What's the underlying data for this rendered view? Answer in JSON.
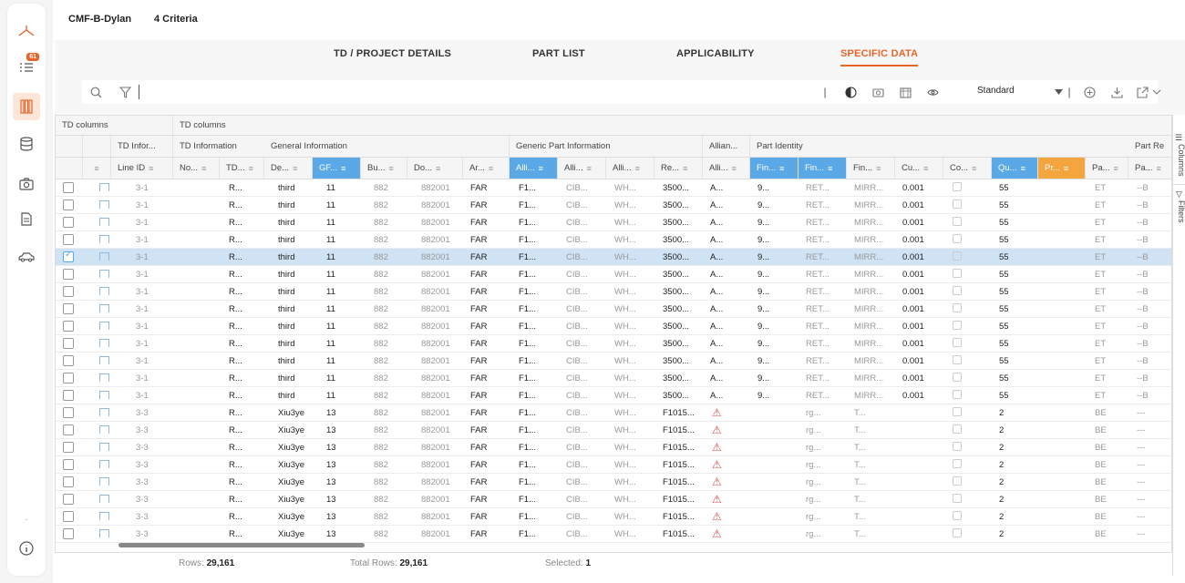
{
  "header": {
    "project": "CMF-B-Dylan",
    "criteria": "4 Criteria"
  },
  "nav": {
    "badge": "61"
  },
  "tabs": [
    {
      "label": "TD / PROJECT DETAILS"
    },
    {
      "label": "PART LIST"
    },
    {
      "label": "APPLICABILITY"
    },
    {
      "label": "SPECIFIC DATA"
    }
  ],
  "toolbar": {
    "view": "Standard",
    "search_placeholder": ""
  },
  "grid": {
    "group_row1": [
      "TD columns",
      "TD columns"
    ],
    "group_row2": [
      "TD Infor...",
      "TD Information",
      "General Information",
      "Generic Part Information",
      "Allian...",
      "Part Identity",
      "Part Re"
    ],
    "columns": [
      "Line ID",
      "No...",
      "TD...",
      "De...",
      "GF...",
      "Bu...",
      "Do...",
      "Ar...",
      "Alli...",
      "Alli...",
      "Alli...",
      "Re...",
      "Alli...",
      "Fin...",
      "Fin...",
      "Fin...",
      "Cu...",
      "Co...",
      "Qu...",
      "Pr...",
      "Pa...",
      "Pa..."
    ],
    "rows": [
      {
        "line": "3-1",
        "td": "R...",
        "de": "third",
        "gf": "11",
        "bu": "882",
        "do": "882001",
        "ar": "FAR",
        "a1": "F1...",
        "a2": "CIB...",
        "a3": "WH...",
        "re": "3500...",
        "a4": "A...",
        "f1": "9...",
        "f2": "RET...",
        "f3": "MIRR...",
        "cu": "0.001",
        "qu": "55",
        "pa1": "ET",
        "pa2": "--B",
        "warn": false,
        "sel": false
      },
      {
        "line": "3-1",
        "td": "R...",
        "de": "third",
        "gf": "11",
        "bu": "882",
        "do": "882001",
        "ar": "FAR",
        "a1": "F1...",
        "a2": "CIB...",
        "a3": "WH...",
        "re": "3500...",
        "a4": "A...",
        "f1": "9...",
        "f2": "RET...",
        "f3": "MIRR...",
        "cu": "0.001",
        "qu": "55",
        "pa1": "ET",
        "pa2": "--B",
        "warn": false,
        "sel": false
      },
      {
        "line": "3-1",
        "td": "R...",
        "de": "third",
        "gf": "11",
        "bu": "882",
        "do": "882001",
        "ar": "FAR",
        "a1": "F1...",
        "a2": "CIB...",
        "a3": "WH...",
        "re": "3500...",
        "a4": "A...",
        "f1": "9...",
        "f2": "RET...",
        "f3": "MIRR...",
        "cu": "0.001",
        "qu": "55",
        "pa1": "ET",
        "pa2": "--B",
        "warn": false,
        "sel": false
      },
      {
        "line": "3-1",
        "td": "R...",
        "de": "third",
        "gf": "11",
        "bu": "882",
        "do": "882001",
        "ar": "FAR",
        "a1": "F1...",
        "a2": "CIB...",
        "a3": "WH...",
        "re": "3500...",
        "a4": "A...",
        "f1": "9...",
        "f2": "RET...",
        "f3": "MIRR...",
        "cu": "0.001",
        "qu": "55",
        "pa1": "ET",
        "pa2": "--B",
        "warn": false,
        "sel": false
      },
      {
        "line": "3-1",
        "td": "R...",
        "de": "third",
        "gf": "11",
        "bu": "882",
        "do": "882001",
        "ar": "FAR",
        "a1": "F1...",
        "a2": "CIB...",
        "a3": "WH...",
        "re": "3500...",
        "a4": "A...",
        "f1": "9...",
        "f2": "RET...",
        "f3": "MIRR...",
        "cu": "0.001",
        "qu": "55",
        "pa1": "ET",
        "pa2": "--B",
        "warn": false,
        "sel": true
      },
      {
        "line": "3-1",
        "td": "R...",
        "de": "third",
        "gf": "11",
        "bu": "882",
        "do": "882001",
        "ar": "FAR",
        "a1": "F1...",
        "a2": "CIB...",
        "a3": "WH...",
        "re": "3500...",
        "a4": "A...",
        "f1": "9...",
        "f2": "RET...",
        "f3": "MIRR...",
        "cu": "0.001",
        "qu": "55",
        "pa1": "ET",
        "pa2": "--B",
        "warn": false,
        "sel": false
      },
      {
        "line": "3-1",
        "td": "R...",
        "de": "third",
        "gf": "11",
        "bu": "882",
        "do": "882001",
        "ar": "FAR",
        "a1": "F1...",
        "a2": "CIB...",
        "a3": "WH...",
        "re": "3500...",
        "a4": "A...",
        "f1": "9...",
        "f2": "RET...",
        "f3": "MIRR...",
        "cu": "0.001",
        "qu": "55",
        "pa1": "ET",
        "pa2": "--B",
        "warn": false,
        "sel": false
      },
      {
        "line": "3-1",
        "td": "R...",
        "de": "third",
        "gf": "11",
        "bu": "882",
        "do": "882001",
        "ar": "FAR",
        "a1": "F1...",
        "a2": "CIB...",
        "a3": "WH...",
        "re": "3500...",
        "a4": "A...",
        "f1": "9...",
        "f2": "RET...",
        "f3": "MIRR...",
        "cu": "0.001",
        "qu": "55",
        "pa1": "ET",
        "pa2": "--B",
        "warn": false,
        "sel": false
      },
      {
        "line": "3-1",
        "td": "R...",
        "de": "third",
        "gf": "11",
        "bu": "882",
        "do": "882001",
        "ar": "FAR",
        "a1": "F1...",
        "a2": "CIB...",
        "a3": "WH...",
        "re": "3500...",
        "a4": "A...",
        "f1": "9...",
        "f2": "RET...",
        "f3": "MIRR...",
        "cu": "0.001",
        "qu": "55",
        "pa1": "ET",
        "pa2": "--B",
        "warn": false,
        "sel": false
      },
      {
        "line": "3-1",
        "td": "R...",
        "de": "third",
        "gf": "11",
        "bu": "882",
        "do": "882001",
        "ar": "FAR",
        "a1": "F1...",
        "a2": "CIB...",
        "a3": "WH...",
        "re": "3500...",
        "a4": "A...",
        "f1": "9...",
        "f2": "RET...",
        "f3": "MIRR...",
        "cu": "0.001",
        "qu": "55",
        "pa1": "ET",
        "pa2": "--B",
        "warn": false,
        "sel": false
      },
      {
        "line": "3-1",
        "td": "R...",
        "de": "third",
        "gf": "11",
        "bu": "882",
        "do": "882001",
        "ar": "FAR",
        "a1": "F1...",
        "a2": "CIB...",
        "a3": "WH...",
        "re": "3500...",
        "a4": "A...",
        "f1": "9...",
        "f2": "RET...",
        "f3": "MIRR...",
        "cu": "0.001",
        "qu": "55",
        "pa1": "ET",
        "pa2": "--B",
        "warn": false,
        "sel": false
      },
      {
        "line": "3-1",
        "td": "R...",
        "de": "third",
        "gf": "11",
        "bu": "882",
        "do": "882001",
        "ar": "FAR",
        "a1": "F1...",
        "a2": "CIB...",
        "a3": "WH...",
        "re": "3500...",
        "a4": "A...",
        "f1": "9...",
        "f2": "RET...",
        "f3": "MIRR...",
        "cu": "0.001",
        "qu": "55",
        "pa1": "ET",
        "pa2": "--B",
        "warn": false,
        "sel": false
      },
      {
        "line": "3-1",
        "td": "R...",
        "de": "third",
        "gf": "11",
        "bu": "882",
        "do": "882001",
        "ar": "FAR",
        "a1": "F1...",
        "a2": "CIB...",
        "a3": "WH...",
        "re": "3500...",
        "a4": "A...",
        "f1": "9...",
        "f2": "RET...",
        "f3": "MIRR...",
        "cu": "0.001",
        "qu": "55",
        "pa1": "ET",
        "pa2": "--B",
        "warn": false,
        "sel": false
      },
      {
        "line": "3-3",
        "td": "R...",
        "de": "Xiu3ye",
        "gf": "13",
        "bu": "882",
        "do": "882001",
        "ar": "FAR",
        "a1": "F1...",
        "a2": "CIB...",
        "a3": "WH...",
        "re": "F1015...",
        "a4": "",
        "f1": "",
        "f2": "rg...",
        "f3": "T...",
        "cu": "",
        "qu": "2",
        "pa1": "BE",
        "pa2": "---",
        "warn": true,
        "sel": false
      },
      {
        "line": "3-3",
        "td": "R...",
        "de": "Xiu3ye",
        "gf": "13",
        "bu": "882",
        "do": "882001",
        "ar": "FAR",
        "a1": "F1...",
        "a2": "CIB...",
        "a3": "WH...",
        "re": "F1015...",
        "a4": "",
        "f1": "",
        "f2": "rg...",
        "f3": "T...",
        "cu": "",
        "qu": "2",
        "pa1": "BE",
        "pa2": "---",
        "warn": true,
        "sel": false
      },
      {
        "line": "3-3",
        "td": "R...",
        "de": "Xiu3ye",
        "gf": "13",
        "bu": "882",
        "do": "882001",
        "ar": "FAR",
        "a1": "F1...",
        "a2": "CIB...",
        "a3": "WH...",
        "re": "F1015...",
        "a4": "",
        "f1": "",
        "f2": "rg...",
        "f3": "T...",
        "cu": "",
        "qu": "2",
        "pa1": "BE",
        "pa2": "---",
        "warn": true,
        "sel": false
      },
      {
        "line": "3-3",
        "td": "R...",
        "de": "Xiu3ye",
        "gf": "13",
        "bu": "882",
        "do": "882001",
        "ar": "FAR",
        "a1": "F1...",
        "a2": "CIB...",
        "a3": "WH...",
        "re": "F1015...",
        "a4": "",
        "f1": "",
        "f2": "rg...",
        "f3": "T...",
        "cu": "",
        "qu": "2",
        "pa1": "BE",
        "pa2": "---",
        "warn": true,
        "sel": false
      },
      {
        "line": "3-3",
        "td": "R...",
        "de": "Xiu3ye",
        "gf": "13",
        "bu": "882",
        "do": "882001",
        "ar": "FAR",
        "a1": "F1...",
        "a2": "CIB...",
        "a3": "WH...",
        "re": "F1015...",
        "a4": "",
        "f1": "",
        "f2": "rg...",
        "f3": "T...",
        "cu": "",
        "qu": "2",
        "pa1": "BE",
        "pa2": "---",
        "warn": true,
        "sel": false
      },
      {
        "line": "3-3",
        "td": "R...",
        "de": "Xiu3ye",
        "gf": "13",
        "bu": "882",
        "do": "882001",
        "ar": "FAR",
        "a1": "F1...",
        "a2": "CIB...",
        "a3": "WH...",
        "re": "F1015...",
        "a4": "",
        "f1": "",
        "f2": "rg...",
        "f3": "T...",
        "cu": "",
        "qu": "2",
        "pa1": "BE",
        "pa2": "---",
        "warn": true,
        "sel": false
      },
      {
        "line": "3-3",
        "td": "R...",
        "de": "Xiu3ye",
        "gf": "13",
        "bu": "882",
        "do": "882001",
        "ar": "FAR",
        "a1": "F1...",
        "a2": "CIB...",
        "a3": "WH...",
        "re": "F1015...",
        "a4": "",
        "f1": "",
        "f2": "rg...",
        "f3": "T...",
        "cu": "",
        "qu": "2",
        "pa1": "BE",
        "pa2": "---",
        "warn": true,
        "sel": false
      },
      {
        "line": "3-3",
        "td": "R...",
        "de": "Xiu3ye",
        "gf": "13",
        "bu": "882",
        "do": "882001",
        "ar": "FAR",
        "a1": "F1...",
        "a2": "CIB...",
        "a3": "WH...",
        "re": "F1015...",
        "a4": "",
        "f1": "",
        "f2": "rg...",
        "f3": "T...",
        "cu": "",
        "qu": "2",
        "pa1": "BE",
        "pa2": "---",
        "warn": true,
        "sel": false
      }
    ]
  },
  "side_panel": {
    "columns": "Columns",
    "filters": "Filters"
  },
  "footer": {
    "rows_label": "Rows:",
    "rows_value": "29,161",
    "total_label": "Total Rows:",
    "total_value": "29,161",
    "selected_label": "Selected:",
    "selected_value": "1"
  }
}
